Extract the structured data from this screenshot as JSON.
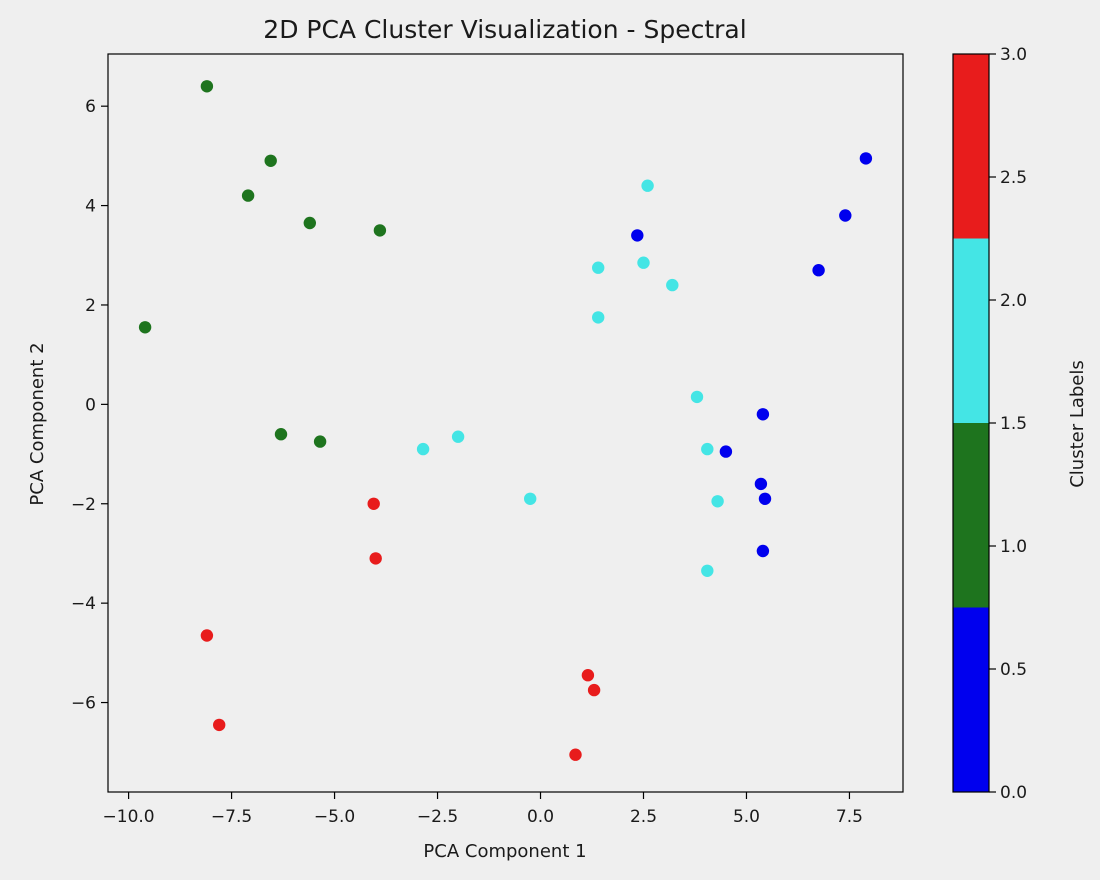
{
  "chart_data": {
    "type": "scatter",
    "title": "2D PCA Cluster Visualization - Spectral",
    "xlabel": "PCA Component 1",
    "ylabel": "PCA Component 2",
    "xlim": [
      -10.5,
      8.8
    ],
    "ylim": [
      -7.8,
      7.05
    ],
    "xticks": [
      -10.0,
      -7.5,
      -5.0,
      -2.5,
      0.0,
      2.5,
      5.0,
      7.5
    ],
    "xtick_labels": [
      "−10.0",
      "−7.5",
      "−5.0",
      "−2.5",
      "0.0",
      "2.5",
      "5.0",
      "7.5"
    ],
    "yticks": [
      6,
      4,
      2,
      0,
      -2,
      -4,
      -6
    ],
    "ytick_labels": [
      "6",
      "4",
      "2",
      "0",
      "−2",
      "−4",
      "−6"
    ],
    "grid": false,
    "colorbar": {
      "label": "Cluster Labels",
      "range": [
        0.0,
        3.0
      ],
      "ticks": [
        0.0,
        0.5,
        1.0,
        1.5,
        2.0,
        2.5,
        3.0
      ],
      "tick_labels": [
        "0.0",
        "0.5",
        "1.0",
        "1.5",
        "2.0",
        "2.5",
        "3.0"
      ],
      "colors": [
        "#0000ee",
        "#1e741e",
        "#44e5e5",
        "#e81c1c"
      ]
    },
    "colors": {
      "0": "#0000ee",
      "1": "#1e741e",
      "2": "#44e5e5",
      "3": "#e81c1c"
    },
    "points": [
      {
        "x": 7.9,
        "y": 4.95,
        "label": 0
      },
      {
        "x": 7.4,
        "y": 3.8,
        "label": 0
      },
      {
        "x": 6.75,
        "y": 2.7,
        "label": 0
      },
      {
        "x": 2.35,
        "y": 3.4,
        "label": 0
      },
      {
        "x": 5.4,
        "y": -0.2,
        "label": 0
      },
      {
        "x": 4.5,
        "y": -0.95,
        "label": 0
      },
      {
        "x": 5.35,
        "y": -1.6,
        "label": 0
      },
      {
        "x": 5.45,
        "y": -1.9,
        "label": 0
      },
      {
        "x": 5.4,
        "y": -2.95,
        "label": 0
      },
      {
        "x": -8.1,
        "y": 6.4,
        "label": 1
      },
      {
        "x": -6.55,
        "y": 4.9,
        "label": 1
      },
      {
        "x": -7.1,
        "y": 4.2,
        "label": 1
      },
      {
        "x": -5.6,
        "y": 3.65,
        "label": 1
      },
      {
        "x": -3.9,
        "y": 3.5,
        "label": 1
      },
      {
        "x": -9.6,
        "y": 1.55,
        "label": 1
      },
      {
        "x": -6.3,
        "y": -0.6,
        "label": 1
      },
      {
        "x": -5.35,
        "y": -0.75,
        "label": 1
      },
      {
        "x": 2.6,
        "y": 4.4,
        "label": 2
      },
      {
        "x": 1.4,
        "y": 2.75,
        "label": 2
      },
      {
        "x": 2.5,
        "y": 2.85,
        "label": 2
      },
      {
        "x": 3.2,
        "y": 2.4,
        "label": 2
      },
      {
        "x": 1.4,
        "y": 1.75,
        "label": 2
      },
      {
        "x": 3.8,
        "y": 0.15,
        "label": 2
      },
      {
        "x": -2.0,
        "y": -0.65,
        "label": 2
      },
      {
        "x": -2.85,
        "y": -0.9,
        "label": 2
      },
      {
        "x": 4.05,
        "y": -0.9,
        "label": 2
      },
      {
        "x": -0.25,
        "y": -1.9,
        "label": 2
      },
      {
        "x": 4.3,
        "y": -1.95,
        "label": 2
      },
      {
        "x": 4.05,
        "y": -3.35,
        "label": 2
      },
      {
        "x": -4.05,
        "y": -2.0,
        "label": 3
      },
      {
        "x": -4.0,
        "y": -3.1,
        "label": 3
      },
      {
        "x": -8.1,
        "y": -4.65,
        "label": 3
      },
      {
        "x": -7.8,
        "y": -6.45,
        "label": 3
      },
      {
        "x": 1.15,
        "y": -5.45,
        "label": 3
      },
      {
        "x": 1.3,
        "y": -5.75,
        "label": 3
      },
      {
        "x": 0.85,
        "y": -7.05,
        "label": 3
      }
    ]
  }
}
